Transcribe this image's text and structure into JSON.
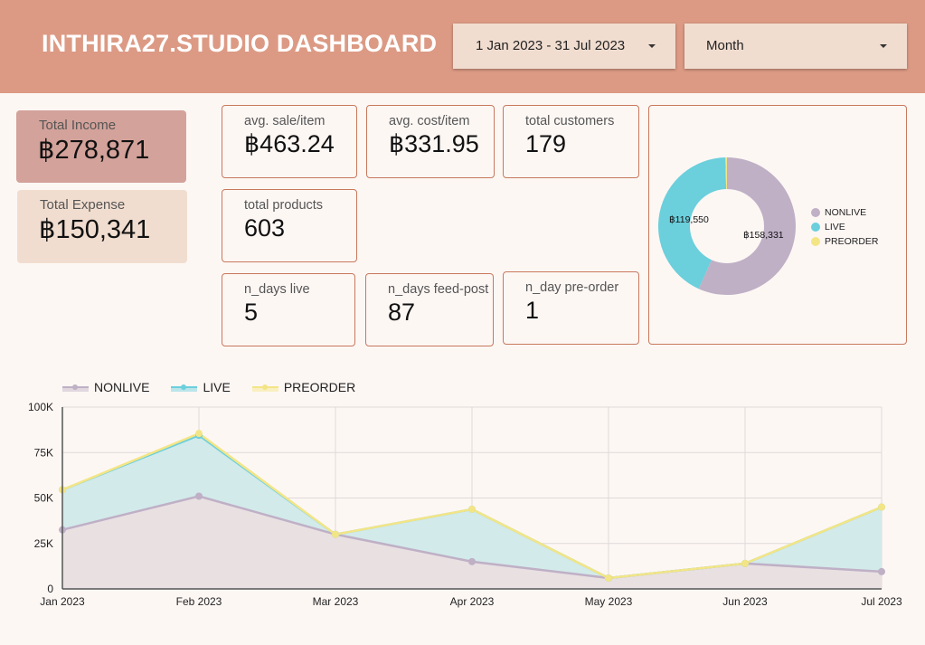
{
  "header": {
    "title": "INTHIRA27.STUDIO DASHBOARD",
    "date_range": "1 Jan 2023 - 31 Jul 2023",
    "granularity": "Month"
  },
  "summary": {
    "income": {
      "label": "Total Income",
      "value": "฿278,871"
    },
    "expense": {
      "label": "Total Expense",
      "value": "฿150,341"
    }
  },
  "kpis": {
    "avg_sale": {
      "label": "avg. sale/item",
      "value": "฿463.24"
    },
    "avg_cost": {
      "label": "avg. cost/item",
      "value": "฿331.95"
    },
    "customers": {
      "label": "total customers",
      "value": "179"
    },
    "products": {
      "label": "total products",
      "value": "603"
    },
    "days_live": {
      "label": "n_days live",
      "value": "5"
    },
    "days_feed": {
      "label": "n_days feed-post",
      "value": "87"
    },
    "days_preorder": {
      "label": "n_day pre-order",
      "value": "1"
    }
  },
  "colors": {
    "nonlive": "#bfb0c6",
    "live": "#6bcfdc",
    "preorder": "#f3e586",
    "header": "#dc9a84",
    "card_border": "#c8785c"
  },
  "chart_data": [
    {
      "type": "pie",
      "variant": "donut",
      "categories": [
        "NONLIVE",
        "LIVE",
        "PREORDER"
      ],
      "values": [
        158331,
        119550,
        990
      ],
      "data_labels": [
        "฿158,331",
        "฿119,550",
        ""
      ],
      "legend": [
        "NONLIVE",
        "LIVE",
        "PREORDER"
      ],
      "legend_position": "right"
    },
    {
      "type": "area",
      "stacked": true,
      "x": [
        "Jan 2023",
        "Feb 2023",
        "Mar 2023",
        "Apr 2023",
        "May 2023",
        "Jun 2023",
        "Jul 2023"
      ],
      "series": [
        {
          "name": "NONLIVE",
          "values": [
            32500,
            51000,
            30000,
            15000,
            6000,
            14000,
            9500
          ]
        },
        {
          "name": "LIVE",
          "values": [
            22000,
            33500,
            0,
            28800,
            0,
            0,
            35500
          ]
        },
        {
          "name": "PREORDER",
          "values": [
            0,
            1000,
            0,
            0,
            0,
            0,
            0
          ]
        }
      ],
      "ylim": [
        0,
        100000
      ],
      "yticks": [
        "0",
        "25K",
        "50K",
        "75K",
        "100K"
      ],
      "yticks_values": [
        0,
        25000,
        50000,
        75000,
        100000
      ],
      "legend_position": "top-left",
      "grid": true
    }
  ]
}
